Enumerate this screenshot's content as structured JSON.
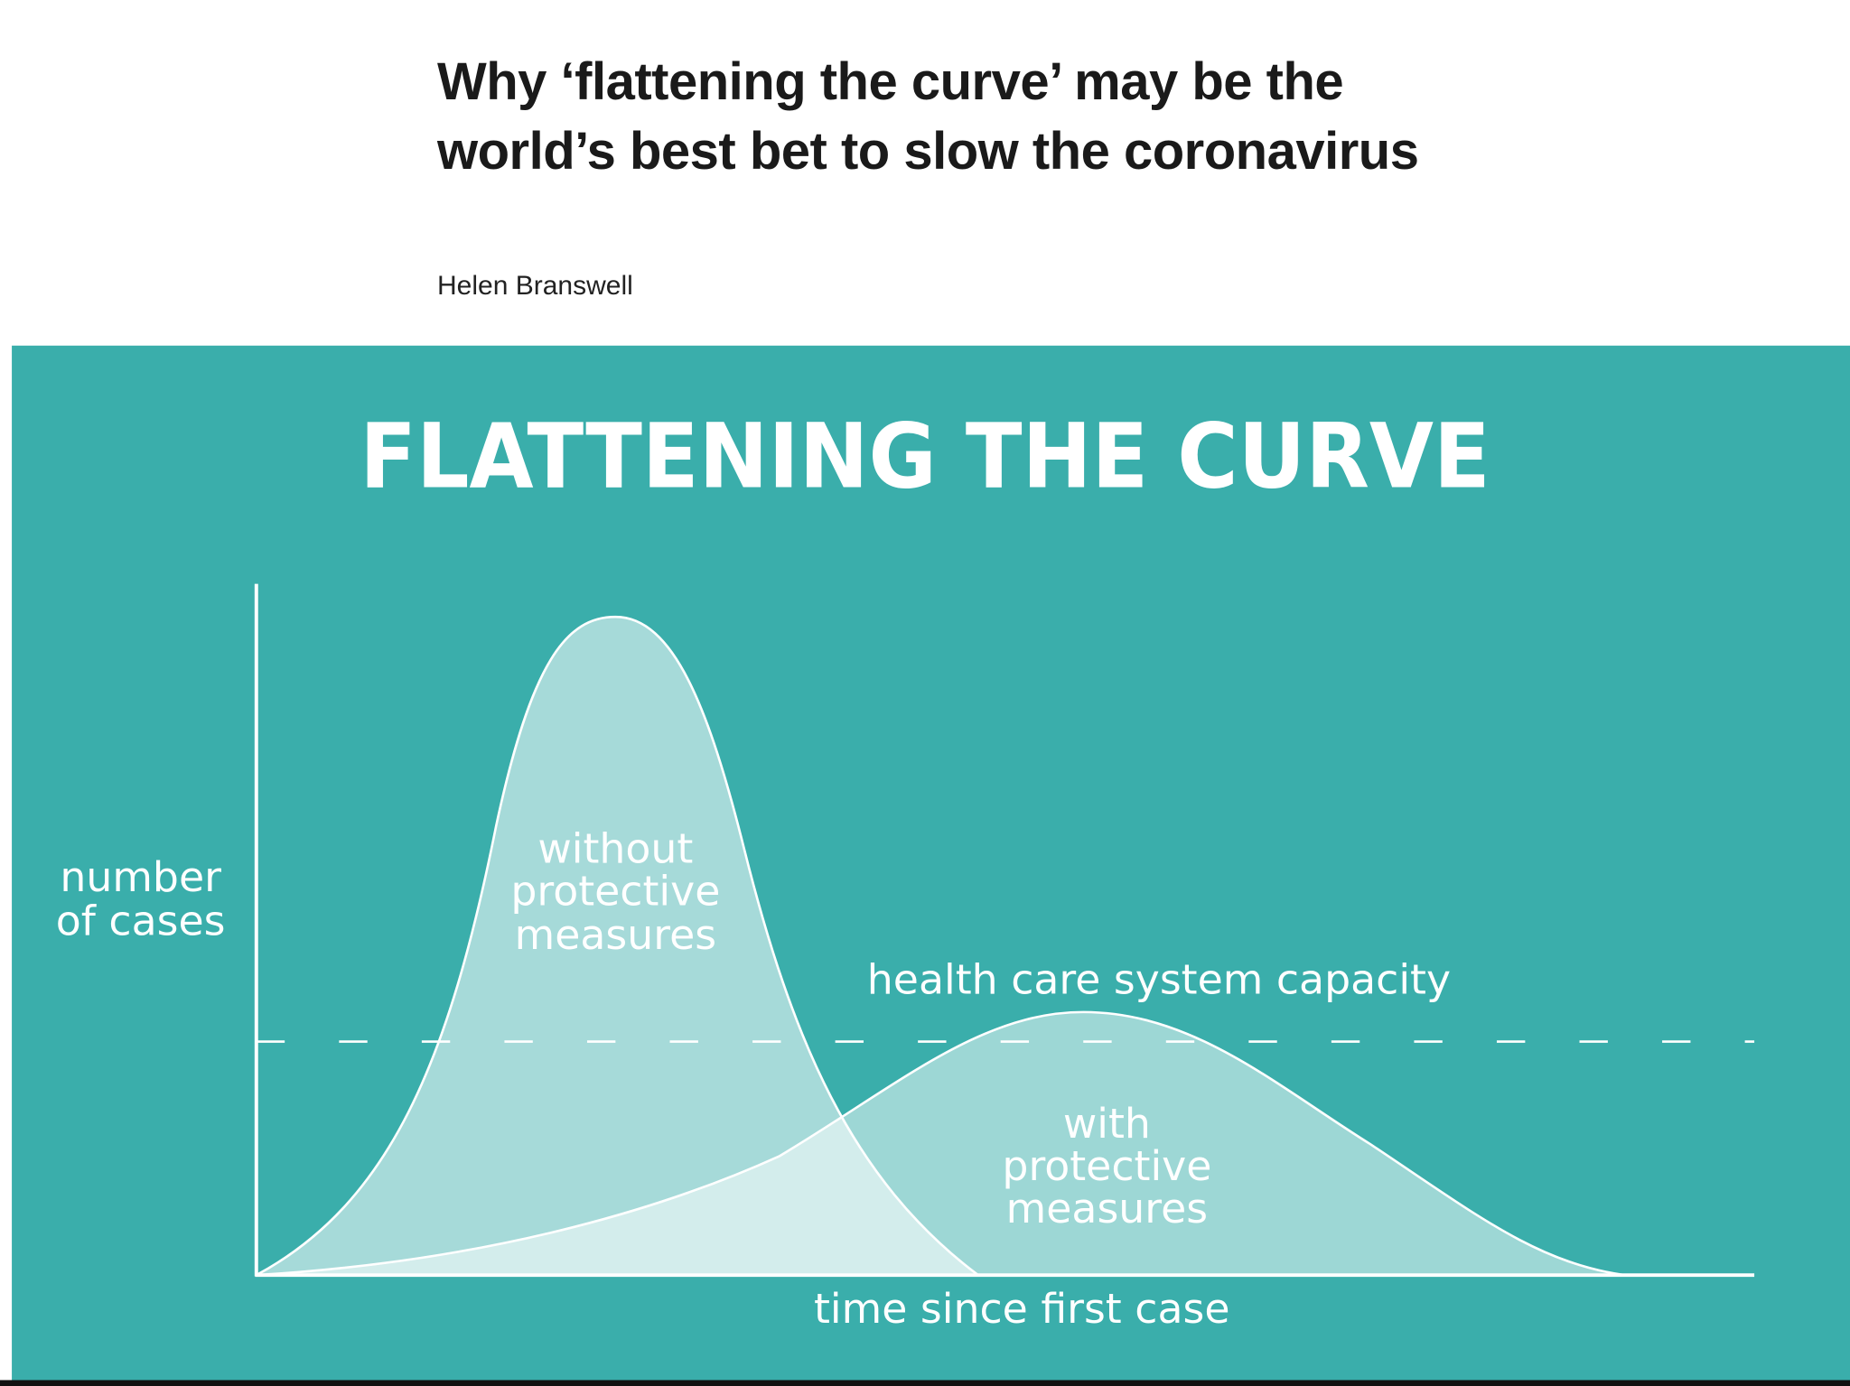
{
  "article": {
    "title": "Why ‘flattening the curve’ may be the world’s best bet to slow the coronavirus",
    "author": "Helen Branswell"
  },
  "figure": {
    "title": "FLATTENING THE CURVE",
    "y_label": [
      "number",
      "of cases"
    ],
    "x_label": "time since first case",
    "capacity_label": "health care system capacity",
    "curve_labels": [
      [
        "without",
        "protective",
        "measures"
      ],
      [
        "with",
        "protective",
        "measures"
      ]
    ]
  }
}
